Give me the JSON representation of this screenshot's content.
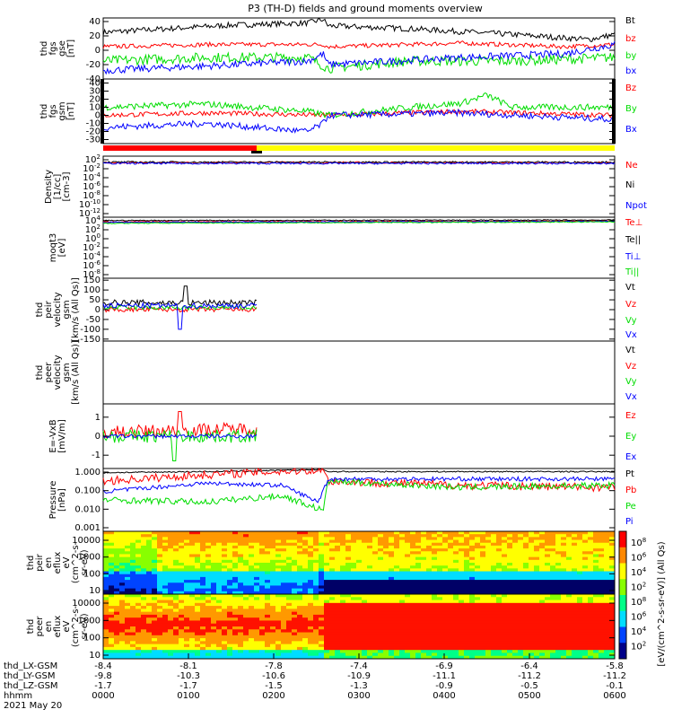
{
  "title": "P3 (TH-D) fields and ground moments overview",
  "colors": {
    "black": "#000000",
    "red": "#ff0000",
    "green": "#00dd00",
    "blue": "#0000ff",
    "yellow": "#ffff00"
  },
  "chart_data": [
    {
      "type": "line",
      "panel": "fgs_gse",
      "ylabel": [
        "thd",
        "fgs",
        "gse",
        "[nT]"
      ],
      "yticks": [
        40,
        20,
        0,
        -20,
        -40
      ],
      "ylim": [
        -40,
        45
      ],
      "series": [
        {
          "name": "Bt",
          "color": "black",
          "seg": [
            [
              0,
              25
            ],
            [
              0.25,
              35
            ],
            [
              0.4,
              38
            ],
            [
              0.43,
              43
            ],
            [
              0.44,
              34
            ],
            [
              0.6,
              30
            ],
            [
              0.8,
              22
            ],
            [
              0.95,
              15
            ],
            [
              1,
              22
            ]
          ],
          "noise": 4
        },
        {
          "name": "bz",
          "color": "red",
          "seg": [
            [
              0,
              5
            ],
            [
              0.2,
              8
            ],
            [
              0.43,
              8
            ],
            [
              0.44,
              5
            ],
            [
              0.7,
              10
            ],
            [
              0.9,
              5
            ],
            [
              1,
              8
            ]
          ],
          "noise": 3
        },
        {
          "name": "by",
          "color": "green",
          "seg": [
            [
              0,
              -15
            ],
            [
              0.2,
              -10
            ],
            [
              0.4,
              -10
            ],
            [
              0.44,
              -25
            ],
            [
              0.6,
              -15
            ],
            [
              0.8,
              -15
            ],
            [
              1,
              -10
            ]
          ],
          "noise": 7
        },
        {
          "name": "bx",
          "color": "blue",
          "seg": [
            [
              0,
              -28
            ],
            [
              0.2,
              -22
            ],
            [
              0.4,
              -15
            ],
            [
              0.43,
              -5
            ],
            [
              0.44,
              -20
            ],
            [
              0.7,
              -10
            ],
            [
              0.9,
              -5
            ],
            [
              1,
              8
            ]
          ],
          "noise": 5
        }
      ]
    },
    {
      "type": "line",
      "panel": "fgs_gsm",
      "ylabel": [
        "thd",
        "fgs",
        "gsm",
        "[nT]"
      ],
      "yticks": [
        40,
        30,
        20,
        10,
        0,
        -10,
        -20,
        -30
      ],
      "ylim": [
        -35,
        45
      ],
      "series": [
        {
          "name": "Bz",
          "color": "red",
          "seg": [
            [
              0,
              0
            ],
            [
              0.2,
              3
            ],
            [
              0.44,
              0
            ],
            [
              0.7,
              5
            ],
            [
              1,
              0
            ]
          ],
          "noise": 3
        },
        {
          "name": "By",
          "color": "green",
          "seg": [
            [
              0,
              10
            ],
            [
              0.2,
              14
            ],
            [
              0.4,
              5
            ],
            [
              0.44,
              0
            ],
            [
              0.6,
              10
            ],
            [
              0.7,
              15
            ],
            [
              0.75,
              25
            ],
            [
              0.8,
              10
            ],
            [
              1,
              10
            ]
          ],
          "noise": 4
        },
        {
          "name": "Bx",
          "color": "blue",
          "seg": [
            [
              0,
              -15
            ],
            [
              0.2,
              -10
            ],
            [
              0.4,
              -20
            ],
            [
              0.43,
              -10
            ],
            [
              0.44,
              0
            ],
            [
              0.7,
              3
            ],
            [
              1,
              -5
            ]
          ],
          "noise": 4
        }
      ]
    },
    {
      "type": "line",
      "panel": "density",
      "ylabel": [
        "Density",
        "[1/cc]",
        "[cm-3]"
      ],
      "yticks": [
        "10^2",
        "10^-2",
        "10^-4",
        "10^-6",
        "10^-8",
        "10^-10",
        "10^-12"
      ],
      "ylim": [
        -12.3,
        2
      ],
      "series": [
        {
          "name": "Ne",
          "color": "red",
          "seg": [
            [
              0,
              0.5
            ],
            [
              1,
              0.5
            ]
          ],
          "noise": 0.2
        },
        {
          "name": "Ni",
          "color": "black",
          "seg": [
            [
              0,
              0.6
            ],
            [
              1,
              0.6
            ]
          ],
          "noise": 0.2
        },
        {
          "name": "Npot",
          "color": "blue",
          "seg": [
            [
              0,
              0.3
            ],
            [
              1,
              0.3
            ]
          ],
          "noise": 0.2
        }
      ]
    },
    {
      "type": "line",
      "panel": "temperature",
      "ylabel": [
        "moqt3",
        "[eV]"
      ],
      "yticks": [
        "10^4",
        "10^2",
        "10^0",
        "10^-2",
        "10^-4",
        "10^-6",
        "10^-8"
      ],
      "ylim": [
        -9,
        4
      ],
      "series": [
        {
          "name": "Te⊥",
          "color": "red",
          "seg": [
            [
              0,
              3
            ],
            [
              1,
              3.2
            ]
          ],
          "noise": 0.1
        },
        {
          "name": "Te||",
          "color": "black",
          "seg": [
            [
              0,
              3.3
            ],
            [
              1,
              3.4
            ]
          ],
          "noise": 0.1
        },
        {
          "name": "Ti⊥",
          "color": "blue",
          "seg": [
            [
              0,
              2.9
            ],
            [
              1,
              3.1
            ]
          ],
          "noise": 0.1
        },
        {
          "name": "Ti||",
          "color": "green",
          "seg": [
            [
              0,
              2.7
            ],
            [
              1,
              3
            ]
          ],
          "noise": 0.1
        }
      ]
    },
    {
      "type": "line",
      "panel": "peir_velocity",
      "ylabel": [
        "thd",
        "peir",
        "velocity",
        "gsm",
        "[km/s (All Qs)]"
      ],
      "yticks": [
        150,
        100,
        50,
        0,
        -50,
        -100,
        -150
      ],
      "ylim": [
        -160,
        160
      ],
      "xend": 0.3,
      "series": [
        {
          "name": "Vt",
          "color": "black",
          "seg": [
            [
              0,
              35
            ],
            [
              0.3,
              35
            ]
          ],
          "noise": 15,
          "spikes": [
            [
              0.16,
              120
            ]
          ]
        },
        {
          "name": "Vz",
          "color": "red",
          "seg": [
            [
              0,
              0
            ],
            [
              0.3,
              0
            ]
          ],
          "noise": 12
        },
        {
          "name": "Vy",
          "color": "green",
          "seg": [
            [
              0,
              10
            ],
            [
              0.3,
              10
            ]
          ],
          "noise": 12
        },
        {
          "name": "Vx",
          "color": "blue",
          "seg": [
            [
              0,
              20
            ],
            [
              0.3,
              20
            ]
          ],
          "noise": 14,
          "spikes": [
            [
              0.15,
              -100
            ]
          ]
        }
      ]
    },
    {
      "type": "line",
      "panel": "peer_velocity",
      "ylabel": [
        "thd",
        "peer",
        "velocity",
        "gsm",
        "[km/s (All Qs)]"
      ],
      "yticks": [],
      "ylim": [
        -1,
        1
      ],
      "series": [
        {
          "name": "Vt",
          "color": "black",
          "seg": [],
          "noise": 0
        },
        {
          "name": "Vz",
          "color": "red",
          "seg": [],
          "noise": 0
        },
        {
          "name": "Vy",
          "color": "green",
          "seg": [],
          "noise": 0
        },
        {
          "name": "Vx",
          "color": "blue",
          "seg": [],
          "noise": 0
        }
      ]
    },
    {
      "type": "line",
      "panel": "efield",
      "ylabel": [
        "E=-VxB",
        "[mV/m]"
      ],
      "yticks": [
        1,
        0,
        -1
      ],
      "ylim": [
        -1.7,
        1.7
      ],
      "xend": 0.3,
      "series": [
        {
          "name": "Ez",
          "color": "red",
          "seg": [
            [
              0,
              0.2
            ],
            [
              0.3,
              0.4
            ]
          ],
          "noise": 0.35,
          "spikes": [
            [
              0.15,
              1.3
            ]
          ]
        },
        {
          "name": "Ey",
          "color": "green",
          "seg": [
            [
              0,
              0
            ],
            [
              0.3,
              0
            ]
          ],
          "noise": 0.35,
          "spikes": [
            [
              0.14,
              -1.3
            ]
          ]
        },
        {
          "name": "Ex",
          "color": "blue",
          "seg": [
            [
              0,
              0
            ],
            [
              0.3,
              0
            ]
          ],
          "noise": 0.1
        }
      ]
    },
    {
      "type": "line",
      "panel": "pressure",
      "log": true,
      "ylabel": [
        "Pressure",
        "[nPa]"
      ],
      "yticks": [
        "1.000",
        "0.100",
        "0.010",
        "0.001"
      ],
      "ylim": [
        -3,
        0
      ],
      "series": [
        {
          "name": "Pt",
          "color": "black",
          "seg": [
            [
              0,
              -0.2
            ],
            [
              0.3,
              -0.12
            ],
            [
              0.43,
              -0.05
            ],
            [
              0.44,
              -0.15
            ],
            [
              1,
              -0.15
            ]
          ],
          "noise": 0.03
        },
        {
          "name": "Pb",
          "color": "red",
          "seg": [
            [
              0,
              -0.6
            ],
            [
              0.2,
              -0.3
            ],
            [
              0.43,
              -0.05
            ],
            [
              0.44,
              -0.6
            ],
            [
              0.7,
              -0.8
            ],
            [
              1,
              -0.9
            ]
          ],
          "noise": 0.2
        },
        {
          "name": "Pe",
          "color": "green",
          "seg": [
            [
              0,
              -1.5
            ],
            [
              0.2,
              -1.6
            ],
            [
              0.35,
              -1.3
            ],
            [
              0.43,
              -2
            ],
            [
              0.44,
              -0.6
            ],
            [
              0.7,
              -0.9
            ],
            [
              1,
              -0.8
            ]
          ],
          "noise": 0.15
        },
        {
          "name": "Pi",
          "color": "blue",
          "seg": [
            [
              0,
              -1.1
            ],
            [
              0.2,
              -0.7
            ],
            [
              0.35,
              -0.8
            ],
            [
              0.42,
              -1.6
            ],
            [
              0.44,
              -0.5
            ],
            [
              1,
              -0.5
            ]
          ],
          "noise": 0.1
        }
      ]
    },
    {
      "type": "heatmap",
      "panel": "peir_eflux",
      "ylabel": [
        "thd",
        "peir",
        "en",
        "eflux",
        "eV",
        "(cm^2-s-",
        "sr-eV)"
      ],
      "yticks": [
        10000,
        1000,
        100,
        10
      ]
    },
    {
      "type": "heatmap",
      "panel": "peer_eflux",
      "ylabel": [
        "thd",
        "peer",
        "en",
        "eflux",
        "eV",
        "(cm^2-s-",
        "sr-eV)"
      ],
      "yticks": [
        10000,
        1000,
        100,
        10
      ]
    }
  ],
  "colorbar": {
    "label": "[eV/(cm^2-s-sr-eV)] (All Qs)",
    "ticks": [
      "10^8",
      "10^6",
      "10^4",
      "10^2",
      "10^8",
      "10^6",
      "10^4",
      "10^2"
    ]
  },
  "xaxis": {
    "rows": [
      {
        "label": "thd_LX-GSM",
        "values": [
          "-8.4",
          "-8.1",
          "-7.8",
          "-7.4",
          "-6.9",
          "-6.4",
          "-5.8"
        ]
      },
      {
        "label": "thd_LY-GSM",
        "values": [
          "-9.8",
          "-10.3",
          "-10.6",
          "-10.9",
          "-11.1",
          "-11.2",
          "-11.2"
        ]
      },
      {
        "label": "thd_LZ-GSM",
        "values": [
          "-1.7",
          "-1.7",
          "-1.5",
          "-1.3",
          "-0.9",
          "-0.5",
          "-0.1"
        ]
      },
      {
        "label": "hhmm",
        "values": [
          "0000",
          "0100",
          "0200",
          "0300",
          "0400",
          "0500",
          "0600"
        ]
      }
    ],
    "date": "2021 May 20"
  },
  "status_bar": {
    "segments": [
      {
        "start": 0,
        "end": 0.3,
        "color": "red"
      },
      {
        "start": 0.3,
        "end": 1,
        "color": "yellow"
      }
    ]
  }
}
